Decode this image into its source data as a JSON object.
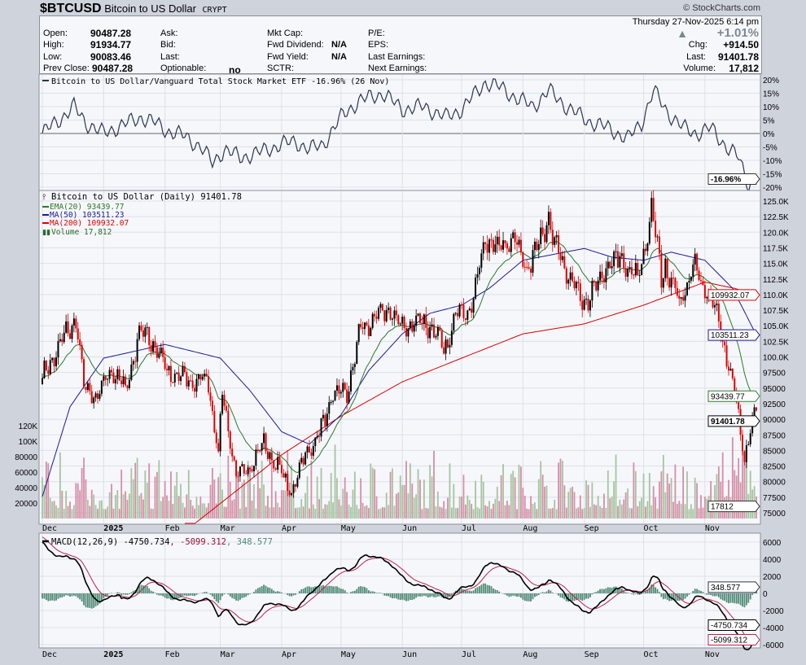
{
  "header": {
    "symbol": "$BTCUSD",
    "name": "Bitcoin to US Dollar",
    "exchange": "CRYPT",
    "copyright": "© StockCharts.com",
    "datetime": "Thursday  27-Nov-2025  6:14 pm",
    "change_pct": "+1.01%",
    "fields": {
      "open_label": "Open:",
      "open": "90487.28",
      "high_label": "High:",
      "high": "91934.77",
      "low_label": "Low:",
      "low": "90083.46",
      "prev_label": "Prev Close:",
      "prev": "90487.28",
      "ask_label": "Ask:",
      "bid_label": "Bid:",
      "last_label2": "Last:",
      "opt_label": "Optionable:",
      "opt": "no",
      "mcap_label": "Mkt Cap:",
      "fdiv_label": "Fwd Dividend:",
      "fdiv": "N/A",
      "fyld_label": "Fwd Yield:",
      "fyld": "N/A",
      "sctr_label": "SCTR:",
      "pe_label": "P/E:",
      "eps_label": "EPS:",
      "le_label": "Last Earnings:",
      "ne_label": "Next Earnings:",
      "chg_label": "Chg:",
      "chg": "+914.50",
      "last_label": "Last:",
      "last": "91401.78",
      "vol_label": "Volume:",
      "vol": "17,812"
    }
  },
  "colors": {
    "up": "#000000",
    "down": "#dd0000",
    "ema20": "#2a7a2a",
    "ma50": "#1a1a9a",
    "ma200": "#dd0000",
    "vol_up": "#a6c4a0",
    "vol_down": "#d48fa6",
    "rel": "#2a3550",
    "macd": "#000000",
    "signal": "#c0204a",
    "hist": "#4f8a74"
  },
  "chart_data": [
    {
      "type": "line",
      "title": "Bitcoin to US Dollar/Vanguard Total Stock Market ETF -16.96% (26 Nov)",
      "ylim": [
        -22,
        22
      ],
      "yticks": [
        "20%",
        "15%",
        "10%",
        "5%",
        "0%",
        "-5%",
        "-10%",
        "-15%",
        "-20%"
      ],
      "ytick_values": [
        20,
        15,
        10,
        5,
        0,
        -5,
        -10,
        -15,
        -20
      ],
      "last_label": "-16.96%",
      "series_anchors_day_pct": [
        [
          0,
          0
        ],
        [
          5,
          3
        ],
        [
          10,
          6
        ],
        [
          16,
          10
        ],
        [
          22,
          4
        ],
        [
          31,
          0
        ],
        [
          40,
          3
        ],
        [
          50,
          6
        ],
        [
          57,
          4
        ],
        [
          63,
          1
        ],
        [
          72,
          -1
        ],
        [
          80,
          -5
        ],
        [
          86,
          -11
        ],
        [
          92,
          -6
        ],
        [
          100,
          -9
        ],
        [
          110,
          -7
        ],
        [
          121,
          -4
        ],
        [
          128,
          -3
        ],
        [
          135,
          -6
        ],
        [
          142,
          -4
        ],
        [
          152,
          7
        ],
        [
          160,
          12
        ],
        [
          172,
          15
        ],
        [
          182,
          9
        ],
        [
          193,
          10
        ],
        [
          204,
          6
        ],
        [
          212,
          9
        ],
        [
          224,
          19
        ],
        [
          232,
          17
        ],
        [
          240,
          13
        ],
        [
          248,
          10
        ],
        [
          256,
          16
        ],
        [
          265,
          10
        ],
        [
          275,
          5
        ],
        [
          286,
          2
        ],
        [
          296,
          -2
        ],
        [
          303,
          4
        ],
        [
          309,
          16
        ],
        [
          316,
          8
        ],
        [
          324,
          2
        ],
        [
          331,
          0
        ],
        [
          338,
          2
        ],
        [
          346,
          -5
        ],
        [
          352,
          -9
        ],
        [
          357,
          -19
        ],
        [
          361,
          -17
        ]
      ]
    },
    {
      "type": "candlestick",
      "title": "Bitcoin to US Dollar (Daily) 91401.78",
      "legend": [
        "EMA(20) 93439.77",
        "MA(50) 103511.23",
        "MA(200) 109932.07",
        "Volume 17,812"
      ],
      "x_start": "2024-12-01",
      "x_end": "2025-11-27",
      "xticks": [
        [
          "Dec",
          0
        ],
        [
          "2025",
          31
        ],
        [
          "Feb",
          62
        ],
        [
          "Mar",
          90
        ],
        [
          "Apr",
          121
        ],
        [
          "May",
          151
        ],
        [
          "Jun",
          182
        ],
        [
          "Jul",
          212
        ],
        [
          "Aug",
          243
        ],
        [
          "Sep",
          274
        ],
        [
          "Oct",
          304
        ],
        [
          "Nov",
          335
        ]
      ],
      "ylim": [
        73500,
        126800
      ],
      "yticks": [
        "125.0K",
        "122.5K",
        "120.0K",
        "117.5K",
        "115.0K",
        "112.5K",
        "110.0K",
        "107.5K",
        "105.0K",
        "102.5K",
        "100.0K",
        "97500",
        "95000",
        "92500",
        "90000",
        "87500",
        "85000",
        "82500",
        "80000",
        "77500",
        "75000"
      ],
      "ytick_values": [
        125000,
        122500,
        120000,
        117500,
        115000,
        112500,
        110000,
        107500,
        105000,
        102500,
        100000,
        97500,
        95000,
        92500,
        90000,
        87500,
        85000,
        82500,
        80000,
        77500,
        75000
      ],
      "volume_ticks": [
        "120K",
        "100K",
        "80000",
        "60000",
        "40000",
        "20000"
      ],
      "volume_tick_values": [
        120000,
        100000,
        80000,
        60000,
        40000,
        20000
      ],
      "volume_ylim": [
        0,
        140000
      ],
      "weekly_closes_day_price": [
        [
          0,
          96400
        ],
        [
          7,
          101000
        ],
        [
          14,
          104500
        ],
        [
          17,
          106500
        ],
        [
          21,
          95000
        ],
        [
          28,
          93500
        ],
        [
          35,
          98300
        ],
        [
          42,
          94500
        ],
        [
          49,
          104000
        ],
        [
          56,
          102600
        ],
        [
          63,
          97700
        ],
        [
          70,
          96500
        ],
        [
          77,
          96100
        ],
        [
          84,
          96200
        ],
        [
          89,
          84300
        ],
        [
          91,
          94200
        ],
        [
          98,
          80700
        ],
        [
          105,
          82600
        ],
        [
          112,
          86000
        ],
        [
          119,
          82300
        ],
        [
          126,
          78300
        ],
        [
          133,
          84500
        ],
        [
          140,
          87500
        ],
        [
          147,
          94000
        ],
        [
          154,
          94300
        ],
        [
          161,
          104500
        ],
        [
          168,
          106000
        ],
        [
          175,
          107800
        ],
        [
          182,
          104600
        ],
        [
          189,
          105700
        ],
        [
          196,
          105300
        ],
        [
          203,
          100900
        ],
        [
          210,
          107200
        ],
        [
          217,
          108200
        ],
        [
          224,
          119000
        ],
        [
          231,
          117300
        ],
        [
          238,
          119400
        ],
        [
          245,
          114200
        ],
        [
          252,
          119200
        ],
        [
          256,
          122500
        ],
        [
          259,
          117400
        ],
        [
          266,
          113500
        ],
        [
          273,
          108200
        ],
        [
          280,
          111100
        ],
        [
          287,
          115300
        ],
        [
          294,
          115200
        ],
        [
          301,
          112100
        ],
        [
          308,
          123500
        ],
        [
          313,
          113000
        ],
        [
          315,
          115000
        ],
        [
          322,
          108600
        ],
        [
          329,
          114500
        ],
        [
          336,
          110500
        ],
        [
          343,
          104700
        ],
        [
          350,
          94200
        ],
        [
          355,
          84000
        ],
        [
          357,
          86800
        ],
        [
          361,
          91401.78
        ]
      ],
      "ma50_anchors": [
        [
          0,
          77600
        ],
        [
          14,
          92000
        ],
        [
          31,
          99800
        ],
        [
          62,
          102000
        ],
        [
          90,
          99800
        ],
        [
          105,
          94600
        ],
        [
          121,
          88000
        ],
        [
          135,
          86000
        ],
        [
          151,
          90700
        ],
        [
          165,
          97800
        ],
        [
          182,
          103700
        ],
        [
          196,
          107000
        ],
        [
          212,
          108300
        ],
        [
          226,
          111000
        ],
        [
          243,
          115500
        ],
        [
          274,
          117400
        ],
        [
          288,
          116000
        ],
        [
          304,
          115500
        ],
        [
          318,
          116800
        ],
        [
          335,
          115500
        ],
        [
          349,
          111000
        ],
        [
          361,
          103511.23
        ]
      ],
      "ma200_anchors": [
        [
          72,
          72000
        ],
        [
          90,
          76500
        ],
        [
          110,
          81500
        ],
        [
          121,
          84300
        ],
        [
          151,
          90500
        ],
        [
          182,
          96000
        ],
        [
          212,
          99800
        ],
        [
          243,
          103700
        ],
        [
          274,
          105300
        ],
        [
          304,
          108300
        ],
        [
          335,
          112000
        ],
        [
          350,
          111000
        ],
        [
          361,
          109932.07
        ]
      ],
      "last_labels": {
        "ma200": "109932.07",
        "ma50": "103511.23",
        "ema20": "93439.77",
        "close": "91401.78",
        "volume": "17812",
        "extra": "92500"
      }
    },
    {
      "type": "line",
      "title": "MACD(12,26,9)",
      "values_text": {
        "macd": "-4750.734",
        "signal": "-5099.312",
        "hist": "348.577"
      },
      "ylim": [
        -7000,
        7000
      ],
      "yticks": [
        "6000",
        "4000",
        "2000",
        "0",
        "-2000",
        "-4000",
        "-6000"
      ],
      "ytick_values": [
        6000,
        4000,
        2000,
        0,
        -2000,
        -4000,
        -6000
      ]
    }
  ]
}
